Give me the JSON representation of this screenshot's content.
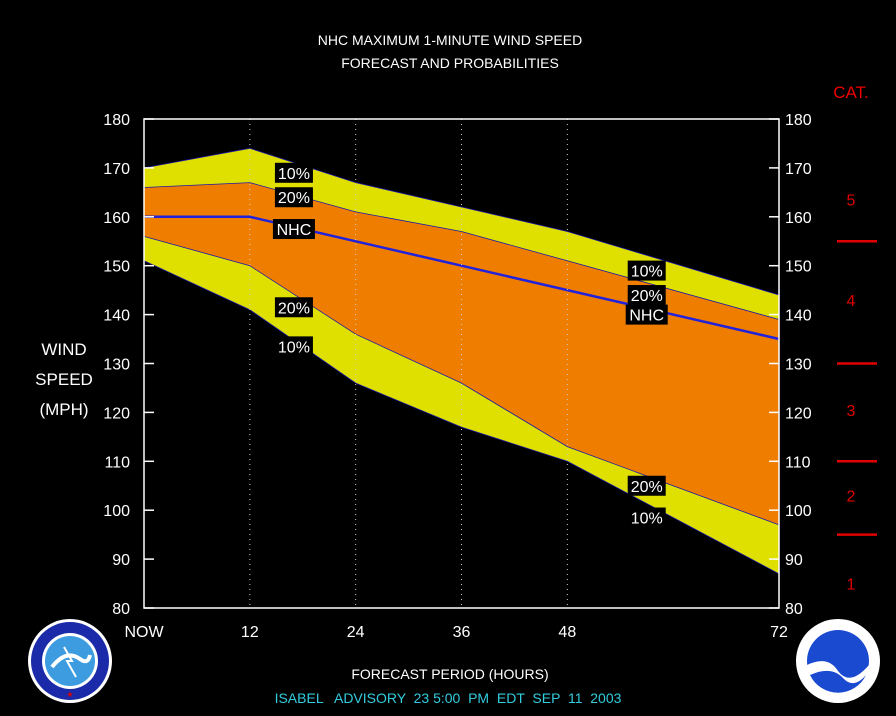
{
  "chart_data": {
    "type": "area",
    "title": "NHC MAXIMUM 1-MINUTE WIND SPEED",
    "subtitle": "FORECAST AND PROBABILITIES",
    "ylabel_lines": [
      "WIND",
      "SPEED",
      "(MPH)"
    ],
    "xlabel": "FORECAST PERIOD (HOURS)",
    "footer": "ISABEL   ADVISORY  23 5:00  PM  EDT  SEP  11  2003",
    "x": [
      0,
      12,
      24,
      36,
      48,
      72
    ],
    "xlim": [
      0,
      72
    ],
    "ylim": [
      80,
      180
    ],
    "x_tick_labels": [
      "NOW",
      "12",
      "24",
      "36",
      "48",
      "72"
    ],
    "y_ticks": [
      80,
      90,
      100,
      110,
      120,
      130,
      140,
      150,
      160,
      170,
      180
    ],
    "grid": "dotted vertical lines at 12, 24, 36, 48 hours",
    "series": [
      {
        "name": "10%",
        "role": "upper",
        "color": "#e0e000",
        "values": [
          170,
          174,
          167,
          162,
          157,
          144
        ]
      },
      {
        "name": "20%",
        "role": "upper",
        "color": "#ef7d00",
        "values": [
          166,
          167,
          161,
          157,
          151,
          139
        ]
      },
      {
        "name": "NHC",
        "role": "forecast",
        "color": "#2222dd",
        "values": [
          160,
          160,
          155,
          150,
          145,
          135
        ]
      },
      {
        "name": "20%",
        "role": "lower",
        "color": "#ef7d00",
        "values": [
          156,
          150,
          136,
          126,
          113,
          97
        ]
      },
      {
        "name": "10%",
        "role": "lower",
        "color": "#e0e000",
        "values": [
          151,
          141,
          126,
          117,
          110,
          87
        ]
      }
    ],
    "annotations": [
      {
        "text": "10%",
        "x": 17,
        "y": 169
      },
      {
        "text": "20%",
        "x": 17,
        "y": 164
      },
      {
        "text": "NHC",
        "x": 17,
        "y": 157.5
      },
      {
        "text": "20%",
        "x": 17,
        "y": 141.5
      },
      {
        "text": "10%",
        "x": 17,
        "y": 133.5
      },
      {
        "text": "10%",
        "x": 57,
        "y": 149
      },
      {
        "text": "20%",
        "x": 57,
        "y": 144
      },
      {
        "text": "NHC",
        "x": 57,
        "y": 140
      },
      {
        "text": "20%",
        "x": 57,
        "y": 105
      },
      {
        "text": "10%",
        "x": 57,
        "y": 98.5
      }
    ],
    "category_scale": {
      "title": "CAT.",
      "color": "#e00000",
      "categories": [
        {
          "label": "5",
          "y": 163.5
        },
        {
          "label": "4",
          "y": 143
        },
        {
          "label": "3",
          "y": 120.5
        },
        {
          "label": "2",
          "y": 103
        },
        {
          "label": "1",
          "y": 85
        }
      ],
      "thresholds": [
        155,
        130,
        110,
        95
      ]
    }
  }
}
